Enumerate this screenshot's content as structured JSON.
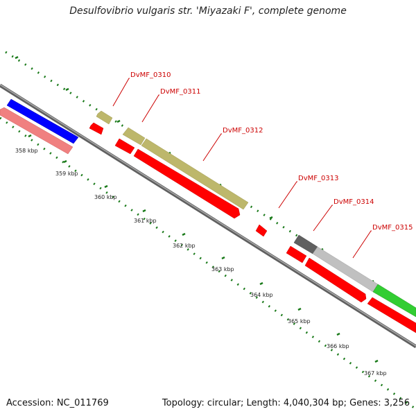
{
  "title": "Desulfovibrio vulgaris str. 'Miyazaki F', complete genome",
  "footer": {
    "accession": "Accession: NC_011769",
    "summary": "Topology: circular; Length: 4,040,304 bp; Genes: 3,256"
  },
  "colors": {
    "backbone": "#808080",
    "tick": "#1a7a1a",
    "label": "#cc0000",
    "cds": "#ff0000",
    "cds_light": "#f08080",
    "cds_blue": "#0000ff",
    "gene_tan": "#bdb76b",
    "gene_darkgray": "#606060",
    "gene_lightgray": "#c0c0c0",
    "gene_green": "#32cd32"
  },
  "ticks": [
    {
      "label": "358 kbp"
    },
    {
      "label": "359 kbp"
    },
    {
      "label": "360 kbp"
    },
    {
      "label": "361 kbp"
    },
    {
      "label": "362 kbp"
    },
    {
      "label": "363 kbp"
    },
    {
      "label": "364 kbp"
    },
    {
      "label": "365 kbp"
    },
    {
      "label": "366 kbp"
    },
    {
      "label": "367 kbp"
    }
  ],
  "genes": [
    {
      "label": "DvMF_0310"
    },
    {
      "label": "DvMF_0311"
    },
    {
      "label": "DvMF_0312"
    },
    {
      "label": "DvMF_0313"
    },
    {
      "label": "DvMF_0314"
    },
    {
      "label": "DvMF_0315"
    }
  ]
}
